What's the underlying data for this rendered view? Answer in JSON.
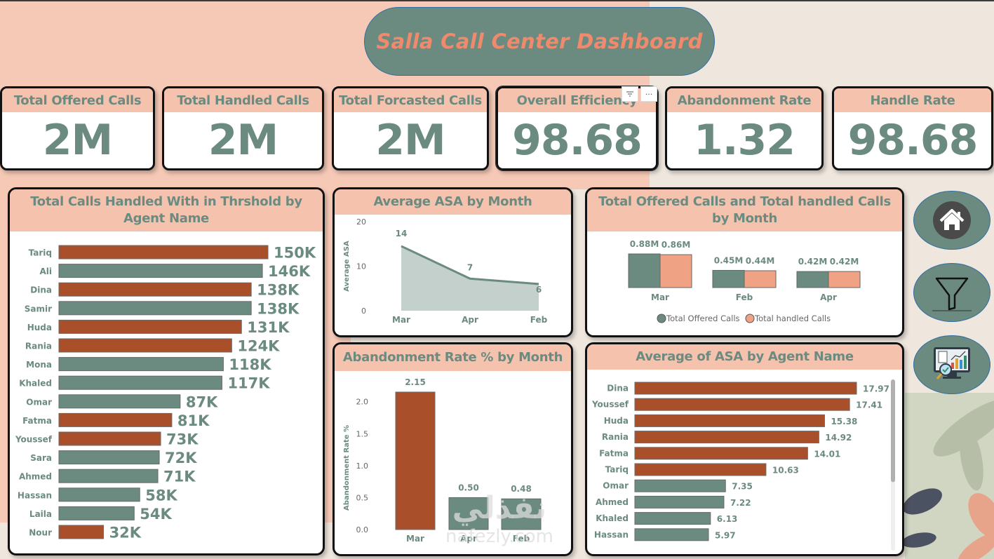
{
  "header": {
    "title": "Salla Call Center Dashboard"
  },
  "kpis": [
    {
      "label": "Total Offered Calls",
      "value": "2M"
    },
    {
      "label": "Total Handled Calls",
      "value": "2M"
    },
    {
      "label": "Total Forcasted Calls",
      "value": "2M"
    },
    {
      "label": "Overall Efficiency",
      "value": "98.68"
    },
    {
      "label": "Abandonment Rate",
      "value": "1.32"
    },
    {
      "label": "Handle Rate",
      "value": "98.68"
    }
  ],
  "visual_menu": {
    "filter_icon": "filter-lines-icon",
    "more_icon": "more-options-icon",
    "more_label": "···"
  },
  "colors": {
    "accent_rust": "#a9502a",
    "accent_sage": "#6b8a80",
    "accent_peach": "#f0a284",
    "header_peach": "#f5c2ad"
  },
  "nav": [
    {
      "name": "home",
      "icon": "home-icon"
    },
    {
      "name": "filter",
      "icon": "funnel-icon"
    },
    {
      "name": "analytics",
      "icon": "analytics-monitor-icon"
    }
  ],
  "watermark": {
    "arabic": "نفذلي",
    "latin": "nafezly.com"
  },
  "chart_data": [
    {
      "id": "threshold_by_agent",
      "type": "bar",
      "orientation": "horizontal",
      "title": "Total Calls Handled With in Thrshold by Agent Name",
      "categories": [
        "Tariq",
        "Ali",
        "Dina",
        "Samir",
        "Huda",
        "Rania",
        "Mona",
        "Khaled",
        "Omar",
        "Fatma",
        "Youssef",
        "Sara",
        "Ahmed",
        "Hassan",
        "Laila",
        "Nour"
      ],
      "values": [
        150,
        146,
        138,
        138,
        131,
        124,
        118,
        117,
        87,
        81,
        73,
        72,
        71,
        58,
        54,
        32
      ],
      "unit": "K",
      "labels": [
        "150K",
        "146K",
        "138K",
        "138K",
        "131K",
        "124K",
        "118K",
        "117K",
        "87K",
        "81K",
        "73K",
        "72K",
        "71K",
        "58K",
        "54K",
        "32K"
      ],
      "highlight": [
        true,
        false,
        true,
        false,
        true,
        true,
        false,
        false,
        false,
        true,
        true,
        false,
        false,
        false,
        false,
        true
      ],
      "xlim": [
        0,
        150
      ]
    },
    {
      "id": "asa_by_month",
      "type": "area",
      "title": "Average ASA by Month",
      "categories": [
        "Mar",
        "Apr",
        "Feb"
      ],
      "values": [
        14.5,
        7.2,
        6.0
      ],
      "labels": [
        "14",
        "7",
        "6"
      ],
      "ylabel": "Average ASA",
      "yticks": [
        "0",
        "10",
        "20"
      ],
      "ylim": [
        0,
        20
      ]
    },
    {
      "id": "abandonment_by_month",
      "type": "bar",
      "title": "Abandonment Rate % by Month",
      "categories": [
        "Mar",
        "Apr",
        "Feb"
      ],
      "values": [
        2.15,
        0.5,
        0.48
      ],
      "labels": [
        "2.15",
        "0.50",
        "0.48"
      ],
      "highlight": [
        true,
        false,
        false
      ],
      "ylabel": "Abandonment Rate %",
      "yticks": [
        "0.0",
        "0.5",
        "1.0",
        "1.5",
        "2.0"
      ],
      "ylim": [
        0,
        2.15
      ]
    },
    {
      "id": "offered_vs_handled_by_month",
      "type": "bar",
      "title": "Total Offered Calls and Total handled Calls by Month",
      "categories": [
        "Mar",
        "Feb",
        "Apr"
      ],
      "series": [
        {
          "name": "Total Offered Calls",
          "values": [
            0.88,
            0.45,
            0.42
          ],
          "labels": [
            "0.88M",
            "0.45M",
            "0.42M"
          ]
        },
        {
          "name": "Total handled Calls",
          "values": [
            0.86,
            0.44,
            0.42
          ],
          "labels": [
            "0.86M",
            "0.44M",
            "0.42M"
          ]
        }
      ],
      "unit": "M",
      "legend": "bottom",
      "ylim": [
        0,
        0.88
      ]
    },
    {
      "id": "asa_by_agent",
      "type": "bar",
      "orientation": "horizontal",
      "title": "Average of ASA by Agent Name",
      "categories": [
        "Dina",
        "Youssef",
        "Huda",
        "Rania",
        "Fatma",
        "Tariq",
        "Omar",
        "Ahmed",
        "Khaled",
        "Hassan"
      ],
      "values": [
        17.97,
        17.41,
        15.38,
        14.92,
        14.01,
        10.63,
        7.35,
        7.22,
        6.13,
        5.97
      ],
      "labels": [
        "17.97",
        "17.41",
        "15.38",
        "14.92",
        "14.01",
        "10.63",
        "7.35",
        "7.22",
        "6.13",
        "5.97"
      ],
      "highlight": [
        true,
        true,
        true,
        true,
        true,
        true,
        false,
        false,
        false,
        false
      ],
      "xlim": [
        0,
        17.97
      ],
      "scroll_position": 0.0,
      "scroll_visible_fraction": 0.6
    }
  ]
}
